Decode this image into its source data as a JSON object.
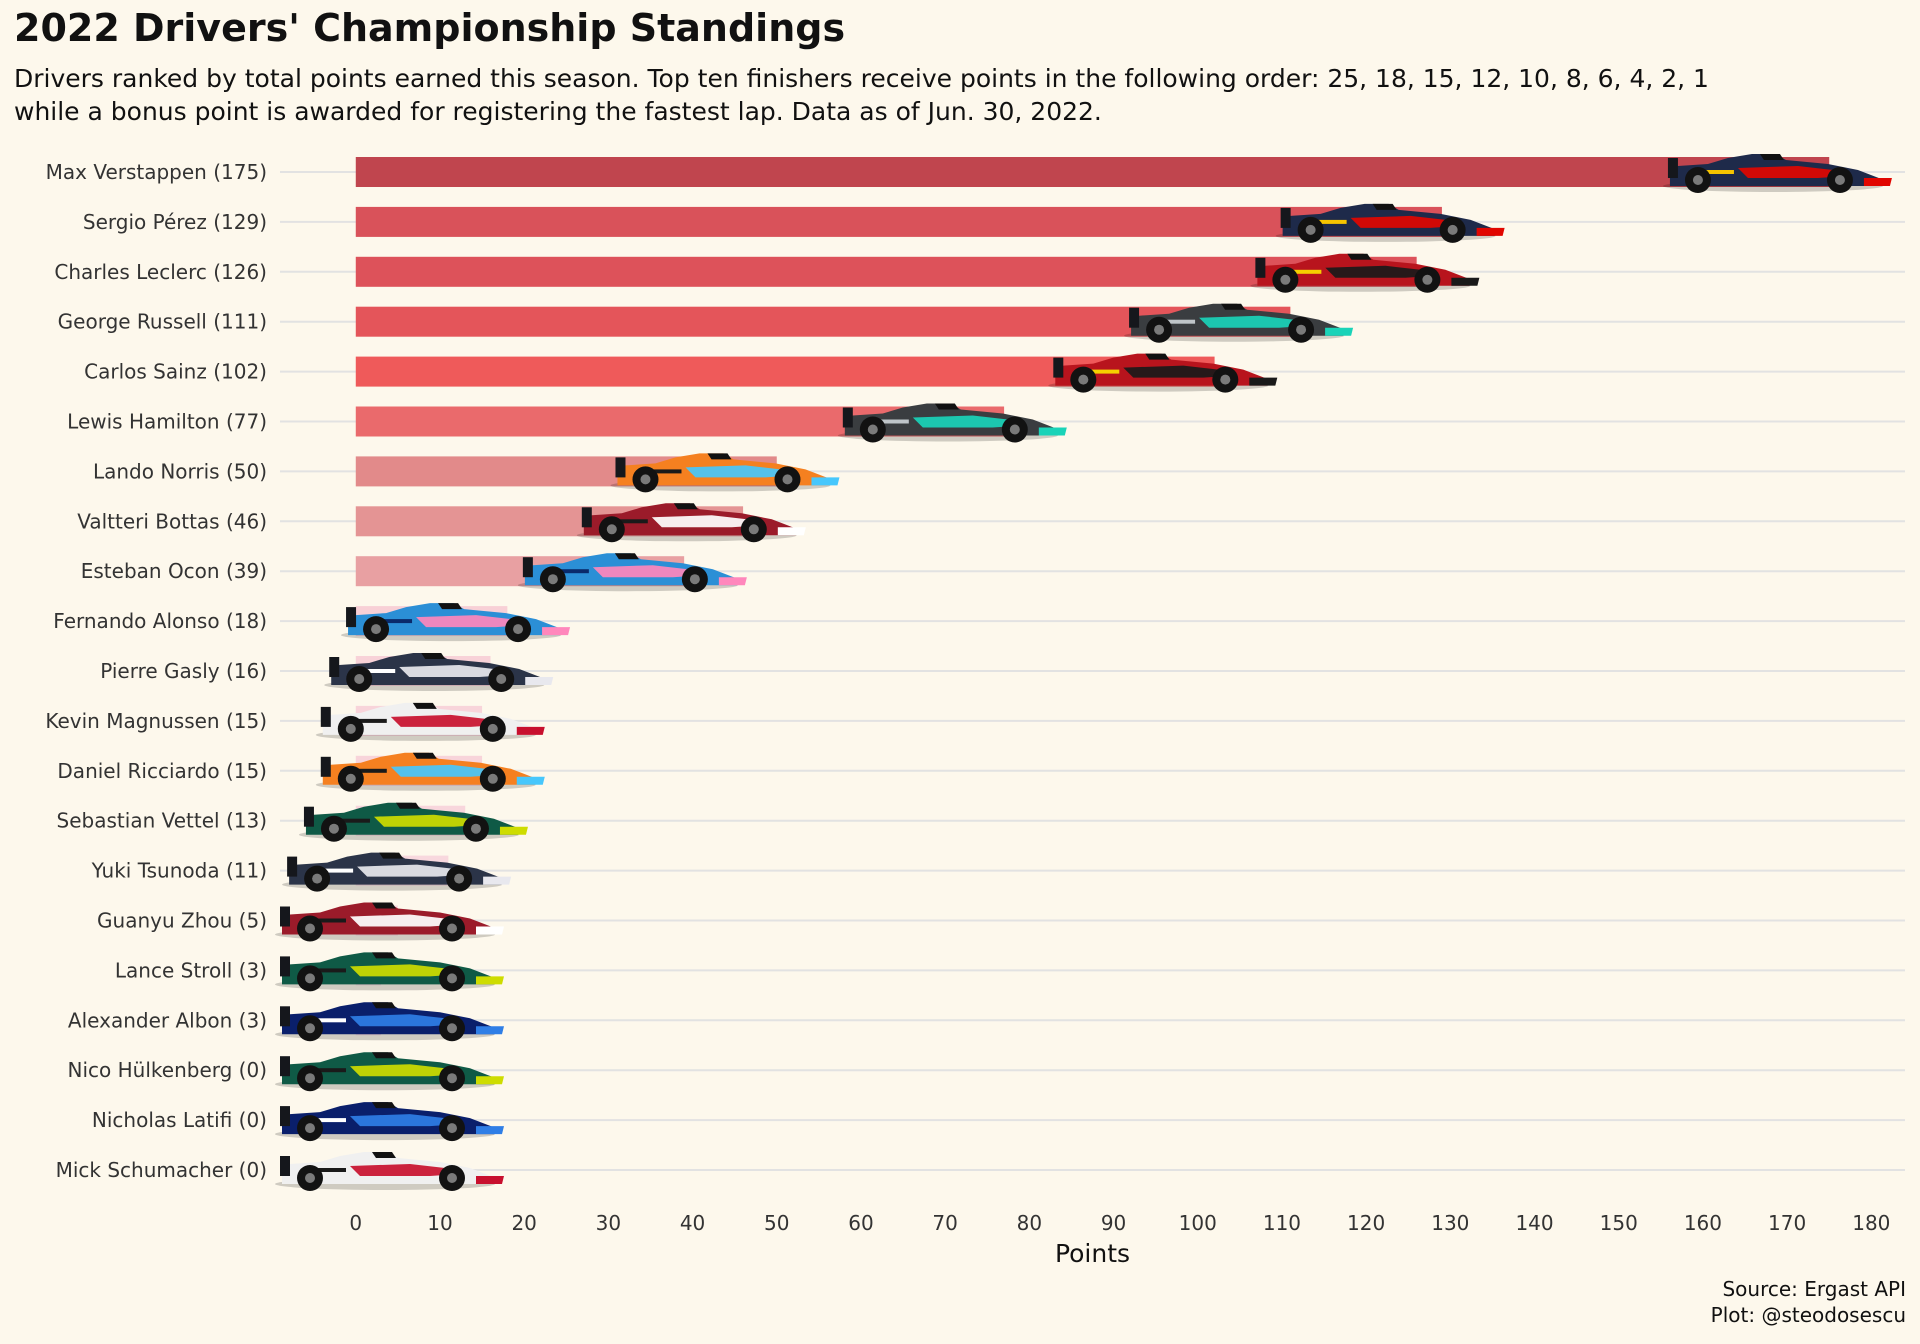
{
  "header": {
    "title": "2022 Drivers' Championship Standings",
    "subtitle": "Drivers ranked by total points earned this season. Top ten finishers receive points in the following order: 25, 18, 15, 12, 10, 8, 6, 4, 2, 1 while a bonus point is awarded for registering the fastest lap. Data as of Jun. 30, 2022."
  },
  "caption": {
    "source": "Source: Ergast API",
    "plot": "Plot: @steodosescu"
  },
  "chart_data": {
    "type": "bar",
    "orientation": "horizontal",
    "xlabel": "Points",
    "xlim": [
      -9,
      184
    ],
    "xticks": [
      0,
      10,
      20,
      30,
      40,
      50,
      60,
      70,
      80,
      90,
      100,
      110,
      120,
      130,
      140,
      150,
      160,
      170,
      180
    ],
    "grid": "horizontal",
    "categories": [
      "Max Verstappen (175)",
      "Sergio Pérez (129)",
      "Charles Leclerc (126)",
      "George Russell (111)",
      "Carlos Sainz (102)",
      "Lewis Hamilton (77)",
      "Lando Norris (50)",
      "Valtteri Bottas (46)",
      "Esteban Ocon (39)",
      "Fernando Alonso (18)",
      "Pierre Gasly (16)",
      "Kevin Magnussen (15)",
      "Daniel Ricciardo (15)",
      "Sebastian Vettel (13)",
      "Yuki Tsunoda (11)",
      "Guanyu Zhou (5)",
      "Lance Stroll (3)",
      "Alexander Albon (3)",
      "Nico Hülkenberg (0)",
      "Nicholas Latifi (0)",
      "Mick Schumacher (0)"
    ],
    "values": [
      175,
      129,
      126,
      111,
      102,
      77,
      50,
      46,
      39,
      18,
      16,
      15,
      15,
      13,
      11,
      5,
      3,
      3,
      0,
      0,
      0
    ],
    "bar_colors": [
      "#c0454e",
      "#d9525a",
      "#dd525a",
      "#e4555a",
      "#ef5a5a",
      "#ea6a6c",
      "#e28a8a",
      "#e49494",
      "#e8a0a2",
      "#f8d0d6",
      "#f8d2d8",
      "#f8d4da",
      "#f8d4da",
      "#f8d6dc",
      "#f8d8de",
      "#f8dae0",
      "#f8dce2",
      "#f8dce2",
      "#f8dee4",
      "#f8dee4",
      "#f8dee4"
    ],
    "car_icons": [
      {
        "name": "red-bull-car-icon",
        "body": "#1e2a4a",
        "accent": "#e10600",
        "stripe": "#f5c400"
      },
      {
        "name": "red-bull-car-icon",
        "body": "#1e2a4a",
        "accent": "#e10600",
        "stripe": "#f5c400"
      },
      {
        "name": "ferrari-car-icon",
        "body": "#b8141d",
        "accent": "#1a1a1a",
        "stripe": "#f5d000"
      },
      {
        "name": "mercedes-car-icon",
        "body": "#3a3d40",
        "accent": "#1ad3b8",
        "stripe": "#bfc5c9"
      },
      {
        "name": "ferrari-car-icon",
        "body": "#b8141d",
        "accent": "#1a1a1a",
        "stripe": "#f5d000"
      },
      {
        "name": "mercedes-car-icon",
        "body": "#3a3d40",
        "accent": "#1ad3b8",
        "stripe": "#bfc5c9"
      },
      {
        "name": "mclaren-car-icon",
        "body": "#f58020",
        "accent": "#47c7fc",
        "stripe": "#1a1a1a"
      },
      {
        "name": "alfa-romeo-car-icon",
        "body": "#9b1b2a",
        "accent": "#ffffff",
        "stripe": "#1a1a1a"
      },
      {
        "name": "alpine-car-icon",
        "body": "#2b8fd6",
        "accent": "#ff87bc",
        "stripe": "#0a2a6b"
      },
      {
        "name": "alpine-car-icon",
        "body": "#2b8fd6",
        "accent": "#ff87bc",
        "stripe": "#0a2a6b"
      },
      {
        "name": "alphatauri-car-icon",
        "body": "#2b3448",
        "accent": "#e8e8ee",
        "stripe": "#ffffff"
      },
      {
        "name": "haas-car-icon",
        "body": "#f0f0f0",
        "accent": "#c8102e",
        "stripe": "#1a1a1a"
      },
      {
        "name": "mclaren-car-icon",
        "body": "#f58020",
        "accent": "#47c7fc",
        "stripe": "#1a1a1a"
      },
      {
        "name": "aston-martin-car-icon",
        "body": "#0f5a46",
        "accent": "#cedc00",
        "stripe": "#1a1a1a"
      },
      {
        "name": "alphatauri-car-icon",
        "body": "#2b3448",
        "accent": "#e8e8ee",
        "stripe": "#ffffff"
      },
      {
        "name": "alfa-romeo-car-icon",
        "body": "#9b1b2a",
        "accent": "#ffffff",
        "stripe": "#1a1a1a"
      },
      {
        "name": "aston-martin-car-icon",
        "body": "#0f5a46",
        "accent": "#cedc00",
        "stripe": "#1a1a1a"
      },
      {
        "name": "williams-car-icon",
        "body": "#0a1f6b",
        "accent": "#2f7ee6",
        "stripe": "#ffffff"
      },
      {
        "name": "aston-martin-car-icon",
        "body": "#0f5a46",
        "accent": "#cedc00",
        "stripe": "#1a1a1a"
      },
      {
        "name": "williams-car-icon",
        "body": "#0a1f6b",
        "accent": "#2f7ee6",
        "stripe": "#ffffff"
      },
      {
        "name": "haas-car-icon",
        "body": "#f0f0f0",
        "accent": "#c8102e",
        "stripe": "#1a1a1a"
      }
    ]
  }
}
